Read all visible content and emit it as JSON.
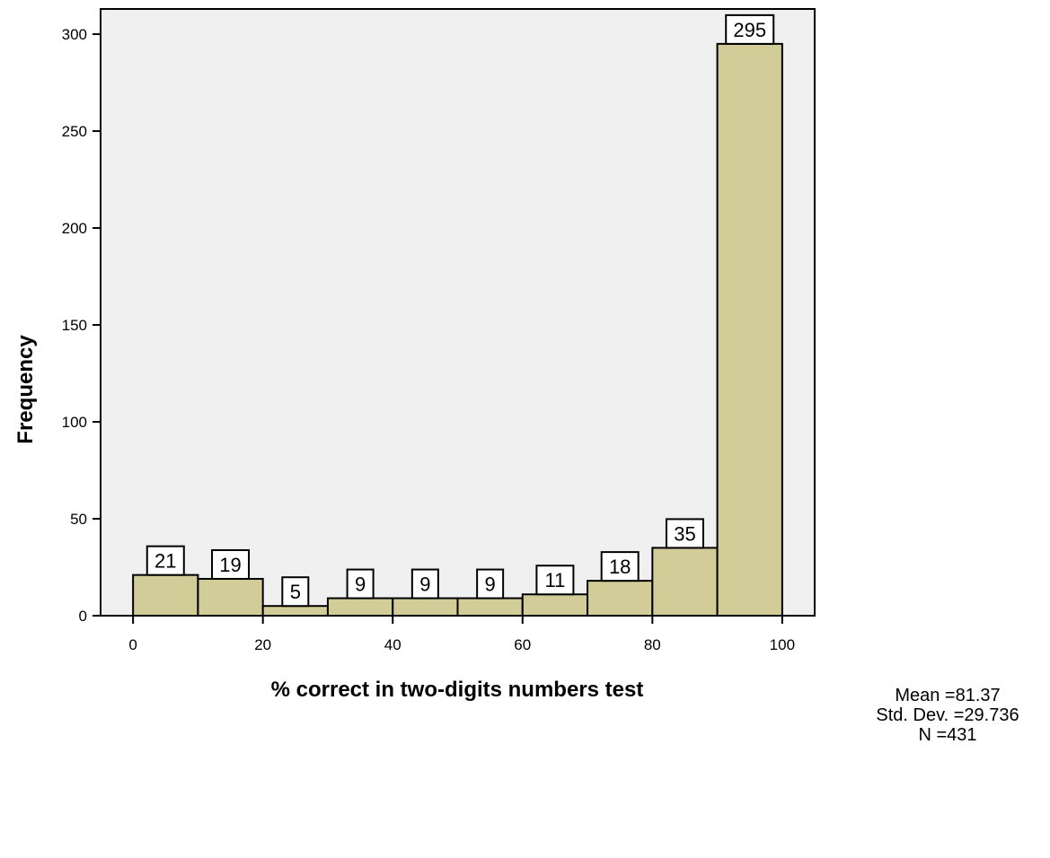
{
  "chart_data": {
    "type": "bar",
    "subtype": "histogram",
    "title": "",
    "xlabel": "% correct in two-digits numbers test",
    "ylabel": "Frequency",
    "bins": [
      [
        0,
        10
      ],
      [
        10,
        20
      ],
      [
        20,
        30
      ],
      [
        30,
        40
      ],
      [
        40,
        50
      ],
      [
        50,
        60
      ],
      [
        60,
        70
      ],
      [
        70,
        80
      ],
      [
        80,
        90
      ],
      [
        90,
        100
      ]
    ],
    "values": [
      21,
      19,
      5,
      9,
      9,
      9,
      11,
      18,
      35,
      295
    ],
    "data_labels": [
      "21",
      "19",
      "5",
      "9",
      "9",
      "9",
      "11",
      "18",
      "35",
      "295"
    ],
    "xlim": [
      -5,
      105
    ],
    "ylim": [
      0,
      313
    ],
    "x_ticks": [
      0,
      20,
      40,
      60,
      80,
      100
    ],
    "x_tick_labels": [
      "0",
      "20",
      "40",
      "60",
      "80",
      "100"
    ],
    "y_ticks": [
      0,
      50,
      100,
      150,
      200,
      250,
      300
    ],
    "y_tick_labels": [
      "0",
      "50",
      "100",
      "150",
      "200",
      "250",
      "300"
    ],
    "grid": false,
    "colors": {
      "bar_fill": "#d2cd98",
      "plot_background": "#f0f0f0",
      "label_box": "#ffffff",
      "stroke": "#000000"
    }
  },
  "stats": {
    "mean": "Mean =81.37",
    "std_dev": "Std. Dev. =29.736",
    "n": "N =431"
  }
}
